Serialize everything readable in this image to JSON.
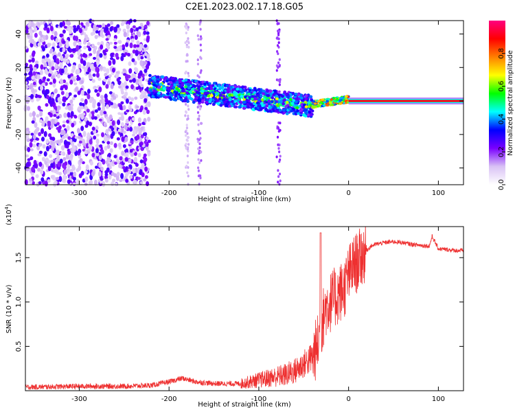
{
  "figure": {
    "title": "C2E1.2023.002.17.18.G05"
  },
  "chart_data": [
    {
      "type": "heatmap",
      "xlabel": "Height of straight line (km)",
      "ylabel": "Frequency (Hz)",
      "xlim": [
        -360,
        128
      ],
      "ylim": [
        -50,
        48
      ],
      "xticks": [
        -300,
        -200,
        -100,
        0,
        100
      ],
      "yticks": [
        -40,
        -20,
        0,
        20,
        40
      ],
      "colorbar": {
        "label": "Normalized spectral amplitude",
        "range": [
          0.0,
          1.0
        ],
        "ticks": [
          0.0,
          0.2,
          0.4,
          0.6,
          0.8
        ],
        "tick_labels": [
          "0.0",
          "0.2",
          "0.4",
          "0.6",
          "0.8"
        ],
        "colormap": [
          "#ffffff",
          "#d9c2f5",
          "#7a00ff",
          "#0000ff",
          "#00ffff",
          "#00ff00",
          "#ffff00",
          "#ff8000",
          "#ff0000",
          "#ff0080"
        ]
      },
      "regions": [
        {
          "x_range": [
            -360,
            -222
          ],
          "y_range": [
            -50,
            48
          ],
          "amplitude": 0.12,
          "pattern": "scattered noise"
        },
        {
          "x_range": [
            -222,
            -40
          ],
          "y_center_start": 9,
          "y_center_end": -3,
          "amplitude": 0.35,
          "pattern": "signal band"
        },
        {
          "x_range": [
            -40,
            0
          ],
          "y_center_start": -2,
          "y_center_end": 1,
          "amplitude": 0.75,
          "pattern": "narrowing tone"
        },
        {
          "x_range": [
            0,
            128
          ],
          "y_center": 0,
          "amplitude": 0.9,
          "pattern": "steady tone"
        }
      ]
    },
    {
      "type": "line",
      "xlabel": "Height of straight line (km)",
      "ylabel": "SNR (10 * v/v)",
      "yscale_label": "(x10",
      "yscale_exp": "4",
      "yscale_close": ")",
      "xlim": [
        -360,
        128
      ],
      "ylim": [
        0.0,
        1.85
      ],
      "xticks": [
        -300,
        -200,
        -100,
        0,
        100
      ],
      "yticks": [
        0.5,
        1.0,
        1.5
      ],
      "ytick_labels": [
        "0.5",
        "1.0",
        "1.5"
      ],
      "line_color": "#ee3030",
      "series": [
        {
          "x": [
            -360,
            -300,
            -250,
            -220,
            -200,
            -185,
            -170,
            -150,
            -120,
            -100,
            -90,
            -80,
            -70,
            -60,
            -50,
            -40,
            -35,
            -30,
            -25,
            -20,
            -15,
            -10,
            -5,
            0,
            5,
            10,
            15,
            20,
            25,
            30,
            40,
            50,
            60,
            70,
            80,
            90,
            93,
            100,
            110,
            120,
            128
          ],
          "y": [
            0.04,
            0.05,
            0.05,
            0.06,
            0.1,
            0.14,
            0.1,
            0.08,
            0.08,
            0.12,
            0.14,
            0.16,
            0.18,
            0.22,
            0.3,
            0.38,
            0.5,
            0.75,
            0.95,
            1.0,
            1.05,
            1.1,
            1.15,
            1.3,
            1.4,
            1.45,
            1.52,
            1.58,
            1.63,
            1.65,
            1.67,
            1.68,
            1.67,
            1.65,
            1.64,
            1.63,
            1.74,
            1.6,
            1.59,
            1.58,
            1.58
          ]
        }
      ]
    }
  ]
}
